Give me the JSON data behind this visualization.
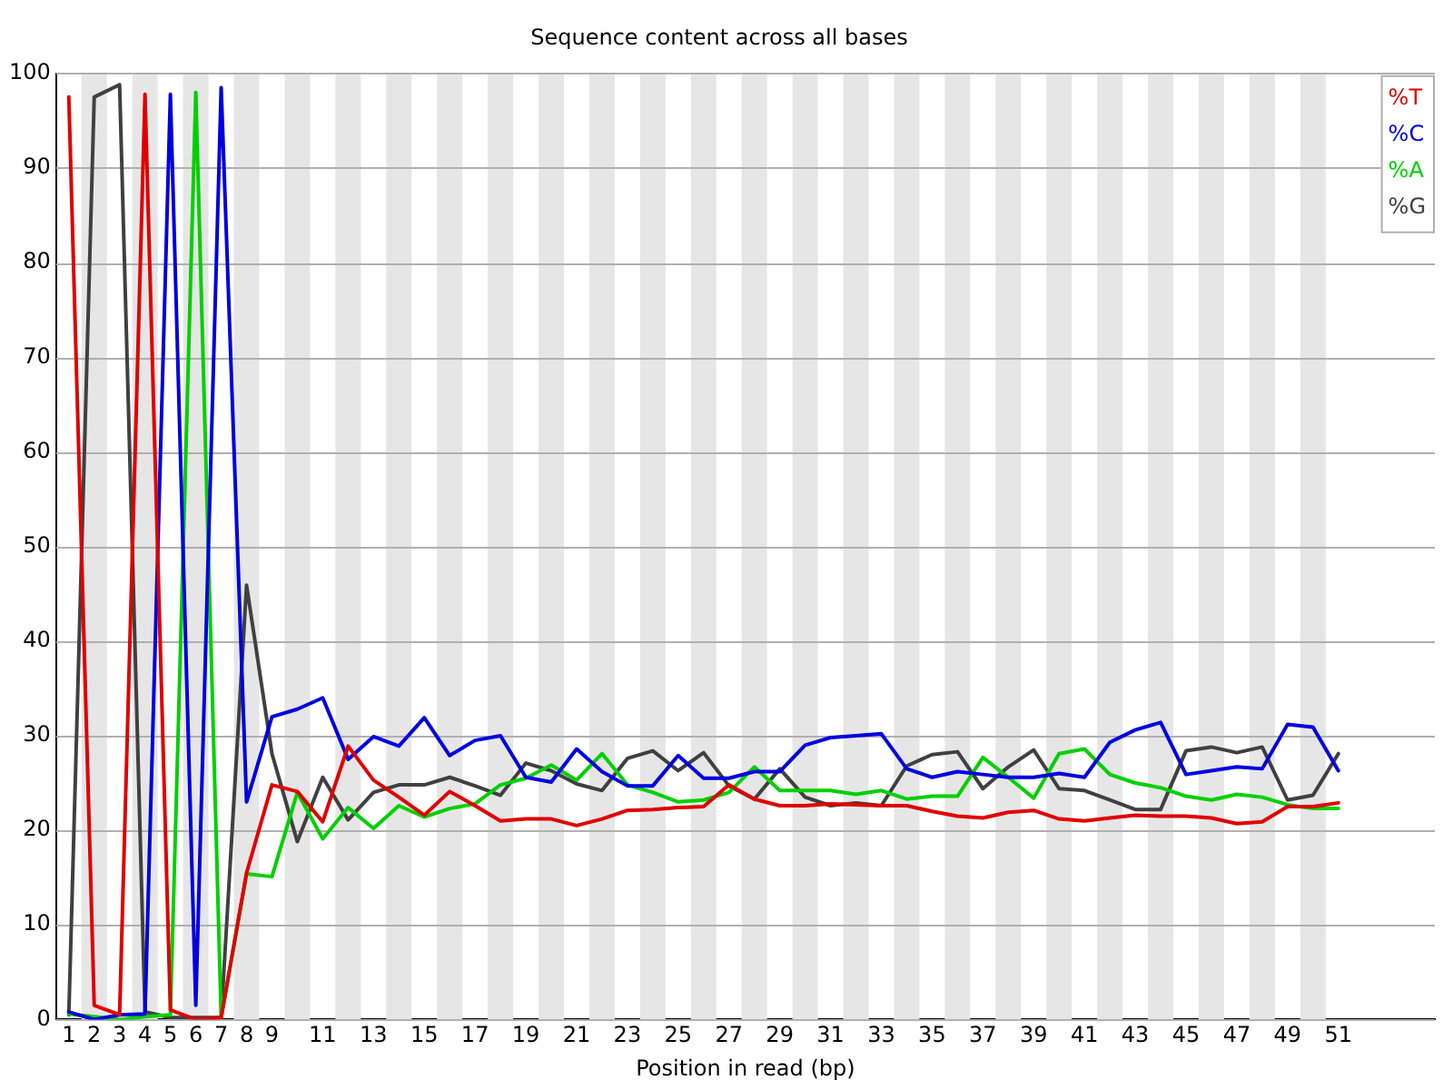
{
  "chart_data": {
    "type": "line",
    "title": "Sequence content across all bases",
    "xlabel": "Position in read (bp)",
    "x": [
      1,
      2,
      3,
      4,
      5,
      6,
      7,
      8,
      9,
      10,
      11,
      12,
      13,
      14,
      15,
      16,
      17,
      18,
      19,
      20,
      21,
      22,
      23,
      24,
      25,
      26,
      27,
      28,
      29,
      30,
      31,
      32,
      33,
      34,
      35,
      36,
      37,
      38,
      39,
      40,
      41,
      42,
      43,
      44,
      45,
      46,
      47,
      48,
      49,
      50,
      51
    ],
    "xlim": [
      0.5,
      54.8
    ],
    "xticks": [
      1,
      2,
      3,
      4,
      5,
      6,
      7,
      8,
      9,
      11,
      13,
      15,
      17,
      19,
      21,
      23,
      25,
      27,
      29,
      31,
      33,
      35,
      37,
      39,
      41,
      43,
      45,
      47,
      49,
      51
    ],
    "bands": [
      {
        "axis": "x",
        "from": 1.5,
        "to": 2.5,
        "color": "#e6e6e6"
      },
      {
        "axis": "x",
        "from": 3.5,
        "to": 4.5,
        "color": "#e6e6e6"
      },
      {
        "axis": "x",
        "from": 5.5,
        "to": 6.5,
        "color": "#e6e6e6"
      },
      {
        "axis": "x",
        "from": 7.5,
        "to": 8.5,
        "color": "#e6e6e6"
      },
      {
        "axis": "x",
        "from": 9.5,
        "to": 10.5,
        "color": "#e6e6e6"
      },
      {
        "axis": "x",
        "from": 11.5,
        "to": 12.5,
        "color": "#e6e6e6"
      },
      {
        "axis": "x",
        "from": 13.5,
        "to": 14.5,
        "color": "#e6e6e6"
      },
      {
        "axis": "x",
        "from": 15.5,
        "to": 16.5,
        "color": "#e6e6e6"
      },
      {
        "axis": "x",
        "from": 17.5,
        "to": 18.5,
        "color": "#e6e6e6"
      },
      {
        "axis": "x",
        "from": 19.5,
        "to": 20.5,
        "color": "#e6e6e6"
      },
      {
        "axis": "x",
        "from": 21.5,
        "to": 22.5,
        "color": "#e6e6e6"
      },
      {
        "axis": "x",
        "from": 23.5,
        "to": 24.5,
        "color": "#e6e6e6"
      },
      {
        "axis": "x",
        "from": 25.5,
        "to": 26.5,
        "color": "#e6e6e6"
      },
      {
        "axis": "x",
        "from": 27.5,
        "to": 28.5,
        "color": "#e6e6e6"
      },
      {
        "axis": "x",
        "from": 29.5,
        "to": 30.5,
        "color": "#e6e6e6"
      },
      {
        "axis": "x",
        "from": 31.5,
        "to": 32.5,
        "color": "#e6e6e6"
      },
      {
        "axis": "x",
        "from": 33.5,
        "to": 34.5,
        "color": "#e6e6e6"
      },
      {
        "axis": "x",
        "from": 35.5,
        "to": 36.5,
        "color": "#e6e6e6"
      },
      {
        "axis": "x",
        "from": 37.5,
        "to": 38.5,
        "color": "#e6e6e6"
      },
      {
        "axis": "x",
        "from": 39.5,
        "to": 40.5,
        "color": "#e6e6e6"
      },
      {
        "axis": "x",
        "from": 41.5,
        "to": 42.5,
        "color": "#e6e6e6"
      },
      {
        "axis": "x",
        "from": 43.5,
        "to": 44.5,
        "color": "#e6e6e6"
      },
      {
        "axis": "x",
        "from": 45.5,
        "to": 46.5,
        "color": "#e6e6e6"
      },
      {
        "axis": "x",
        "from": 47.5,
        "to": 48.5,
        "color": "#e6e6e6"
      },
      {
        "axis": "x",
        "from": 49.5,
        "to": 50.5,
        "color": "#e6e6e6"
      }
    ],
    "ylim": [
      0,
      100
    ],
    "yticks": [
      0,
      10,
      20,
      30,
      40,
      50,
      60,
      70,
      80,
      90,
      100
    ],
    "grid": "y",
    "legend": "top right",
    "marker": "none",
    "line_style": "solid",
    "series": [
      {
        "name": "%T",
        "color": "#e00000",
        "values": [
          97.5,
          1.5,
          0.5,
          97.8,
          1,
          0,
          0.2,
          15.5,
          24.8,
          24.1,
          20.9,
          28.9,
          25.3,
          23.5,
          21.6,
          24.1,
          22.6,
          21.0,
          21.2,
          21.2,
          20.5,
          21.2,
          22.1,
          22.2,
          22.4,
          22.5,
          24.8,
          23.3,
          22.6,
          22.6,
          22.8,
          22.7,
          22.6,
          22.6,
          22.0,
          21.5,
          21.3,
          21.9,
          22.1,
          21.2,
          21.0,
          21.3,
          21.6,
          21.5,
          21.5,
          21.3,
          20.7,
          20.9,
          22.5,
          22.5,
          22.9
        ]
      },
      {
        "name": "%C",
        "color": "#0000e0",
        "values": [
          0.8,
          0,
          0.5,
          0.6,
          97.8,
          1.5,
          98.5,
          23,
          32,
          32.8,
          34,
          27.5,
          29.9,
          28.9,
          31.9,
          27.9,
          29.5,
          30.0,
          25.6,
          25.1,
          28.6,
          26.2,
          24.7,
          24.7,
          27.9,
          25.5,
          25.5,
          26.2,
          26.2,
          29.0,
          29.8,
          30.0,
          30.2,
          26.5,
          25.6,
          26.2,
          25.9,
          25.6,
          25.6,
          26.0,
          25.6,
          29.3,
          30.6,
          31.4,
          25.9,
          26.3,
          26.7,
          26.5,
          31.2,
          30.9,
          26.3
        ]
      },
      {
        "name": "%A",
        "color": "#00d000",
        "values": [
          0.6,
          0.3,
          0,
          0.3,
          0.5,
          98,
          0.2,
          15.4,
          15.1,
          24,
          19.1,
          22.4,
          20.2,
          22.6,
          21.4,
          22.3,
          22.8,
          24.8,
          25.5,
          26.9,
          25.3,
          28.1,
          24.8,
          24.0,
          23.0,
          23.2,
          24.0,
          26.7,
          24.2,
          24.2,
          24.2,
          23.8,
          24.2,
          23.3,
          23.6,
          23.6,
          27.7,
          25.6,
          23.4,
          28.1,
          28.6,
          25.9,
          25.0,
          24.5,
          23.6,
          23.2,
          23.8,
          23.5,
          22.7,
          22.3,
          22.3
        ]
      },
      {
        "name": "%G",
        "color": "#404040",
        "values": [
          0.5,
          97.5,
          98.8,
          0.8,
          0.2,
          0.2,
          0.2,
          45.9,
          28.1,
          18.8,
          25.6,
          21.1,
          24,
          24.8,
          24.8,
          25.6,
          24.7,
          23.7,
          27.1,
          26.3,
          24.9,
          24.2,
          27.6,
          28.4,
          26.3,
          28.2,
          24.7,
          23.3,
          26.5,
          23.5,
          22.6,
          22.9,
          22.6,
          26.8,
          28.0,
          28.3,
          24.4,
          26.7,
          28.5,
          24.4,
          24.2,
          23.2,
          22.2,
          22.2,
          28.4,
          28.8,
          28.2,
          28.8,
          23.2,
          23.7,
          28.1
        ]
      }
    ]
  }
}
